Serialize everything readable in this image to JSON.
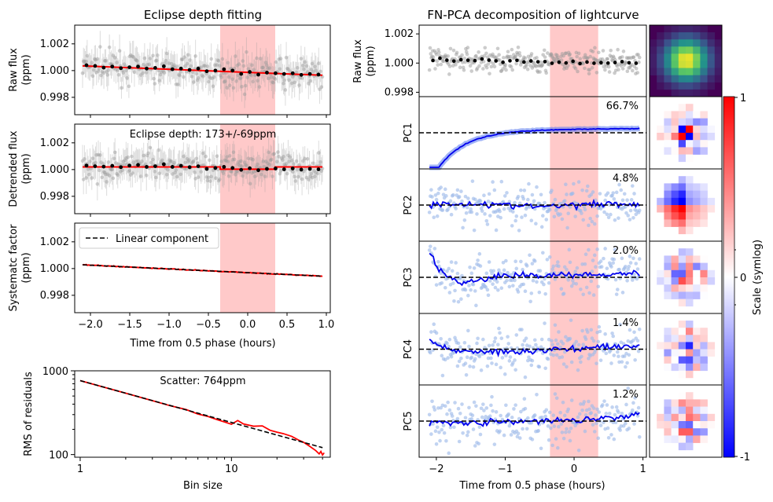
{
  "chart_data": [
    {
      "type": "scatter",
      "panel": "raw-flux",
      "title": "Eclipse depth fitting",
      "ylabel": [
        "Raw flux",
        "(ppm)"
      ],
      "xlim": [
        -2.2,
        1.05
      ],
      "ylim": [
        0.9967,
        1.0034
      ],
      "yticks": [
        "0.998",
        "1.000",
        "1.002"
      ],
      "shaded_x": [
        -0.35,
        0.35
      ],
      "binned_y": [
        1.0004,
        1.00035,
        1.00022,
        1.0003,
        1.00018,
        1.00025,
        1.0003,
        1.00015,
        1.0002,
        1.00032,
        1.0001,
        1.00015,
        1.00005,
        1.00015,
        0.99995,
        1.0,
        1.0001,
        1.0,
        0.99975,
        0.9999,
        0.9997,
        0.99985,
        0.9998,
        0.99975,
        0.9998,
        0.99968,
        0.99975,
        0.9997
      ],
      "model": [
        [
          -2.1,
          1.00035
        ],
        [
          0.95,
          0.99965
        ]
      ]
    },
    {
      "type": "scatter",
      "panel": "detrended-flux",
      "ylabel": [
        "Detrended flux",
        "(ppm)"
      ],
      "xlim": [
        -2.2,
        1.05
      ],
      "ylim": [
        0.9967,
        1.0034
      ],
      "yticks": [
        "0.998",
        "1.000",
        "1.002"
      ],
      "shaded_x": [
        -0.35,
        0.35
      ],
      "annotation": "Eclipse depth: 173+/-69ppm",
      "binned_y": [
        1.0003,
        1.00025,
        1.00022,
        1.00028,
        1.00018,
        1.0003,
        1.00035,
        1.0002,
        1.00025,
        1.0004,
        1.0002,
        1.00028,
        1.00018,
        1.00025,
        1.00005,
        1.00012,
        1.0002,
        1.00012,
        0.99998,
        1.0001,
        0.99995,
        1.00005,
        1.00008,
        1.00002,
        1.00008,
        1.0,
        1.00005,
        1.00002
      ],
      "model": [
        [
          -2.1,
          1.0002
        ],
        [
          -0.35,
          1.0002
        ],
        [
          -0.35,
          1.00003
        ],
        [
          0.35,
          1.00003
        ],
        [
          0.35,
          1.0002
        ],
        [
          0.95,
          1.0002
        ]
      ]
    },
    {
      "type": "line",
      "panel": "systematic-factor",
      "ylabel": [
        "Systematc factor",
        "(ppm)"
      ],
      "xlabel": "Time from 0.5 phase (hours)",
      "xlim": [
        -2.2,
        1.05
      ],
      "ylim": [
        0.9967,
        1.0034
      ],
      "xticks": [
        -2.0,
        -1.5,
        -1.0,
        -0.5,
        0.0,
        0.5,
        1.0
      ],
      "xtick_labels": [
        "−2.0",
        "−1.5",
        "−1.0",
        "−0.5",
        "0.0",
        "0.5",
        "1.0"
      ],
      "yticks": [
        "0.998",
        "1.000",
        "1.002"
      ],
      "shaded_x": [
        -0.35,
        0.35
      ],
      "legend": "Linear component",
      "linear": [
        [
          -2.1,
          1.00028
        ],
        [
          0.95,
          0.99943
        ]
      ]
    },
    {
      "type": "line",
      "panel": "rms",
      "xlabel": "Bin size",
      "ylabel": "RMS of residuals",
      "xscale": "log",
      "yscale": "log",
      "xlim": [
        0.92,
        45
      ],
      "ylim": [
        93,
        1000
      ],
      "xtick_labels": [
        "1",
        "10"
      ],
      "ytick_labels": [
        "100",
        "1000"
      ],
      "annotation": "Scatter: 764ppm",
      "expected": [
        [
          1,
          764
        ],
        [
          40,
          121
        ]
      ],
      "measured": [
        [
          1,
          764
        ],
        [
          2,
          540
        ],
        [
          3,
          440
        ],
        [
          4,
          380
        ],
        [
          5,
          345
        ],
        [
          6,
          305
        ],
        [
          7,
          285
        ],
        [
          8,
          262
        ],
        [
          9,
          245
        ],
        [
          10,
          230
        ],
        [
          11,
          255
        ],
        [
          12,
          232
        ],
        [
          14,
          218
        ],
        [
          16,
          220
        ],
        [
          18,
          195
        ],
        [
          20,
          185
        ],
        [
          22,
          178
        ],
        [
          25,
          165
        ],
        [
          28,
          148
        ],
        [
          30,
          140
        ],
        [
          33,
          125
        ],
        [
          36,
          112
        ],
        [
          38,
          102
        ],
        [
          39,
          109
        ],
        [
          40,
          99
        ],
        [
          41,
          105
        ]
      ]
    },
    {
      "type": "scatter",
      "panel": "fnpca",
      "title": "FN-PCA decomposition of lightcurve",
      "xlabel": "Time from 0.5 phase (hours)",
      "xlim": [
        -2.25,
        1.05
      ],
      "xticks": [
        -2,
        -1,
        0,
        1
      ],
      "xtick_labels": [
        "−2",
        "−1",
        "0",
        "1"
      ],
      "shaded_x": [
        -0.35,
        0.35
      ],
      "raw": {
        "ylabel": [
          "Raw flux",
          "(ppm)"
        ],
        "ylim": [
          0.9977,
          1.0026
        ],
        "yticks": [
          "0.998",
          "1.000",
          "1.002"
        ]
      },
      "components": [
        {
          "label": "PC1",
          "variance": "66.7%"
        },
        {
          "label": "PC2",
          "variance": "4.8%"
        },
        {
          "label": "PC3",
          "variance": "2.0%"
        },
        {
          "label": "PC4",
          "variance": "1.4%"
        },
        {
          "label": "PC5",
          "variance": "1.2%"
        }
      ]
    },
    {
      "type": "heatmap",
      "panel": "pixel-maps",
      "colorbar_label": "Scale (symlog)",
      "colorbar_ticks": [
        "1",
        "0",
        "-1"
      ]
    }
  ],
  "colors": {
    "shade": "#ffc9c9",
    "model": "#ff0000",
    "points": "#9a9a9a",
    "pc_points": "#9fbcea",
    "pc_line": "#0000ee"
  }
}
